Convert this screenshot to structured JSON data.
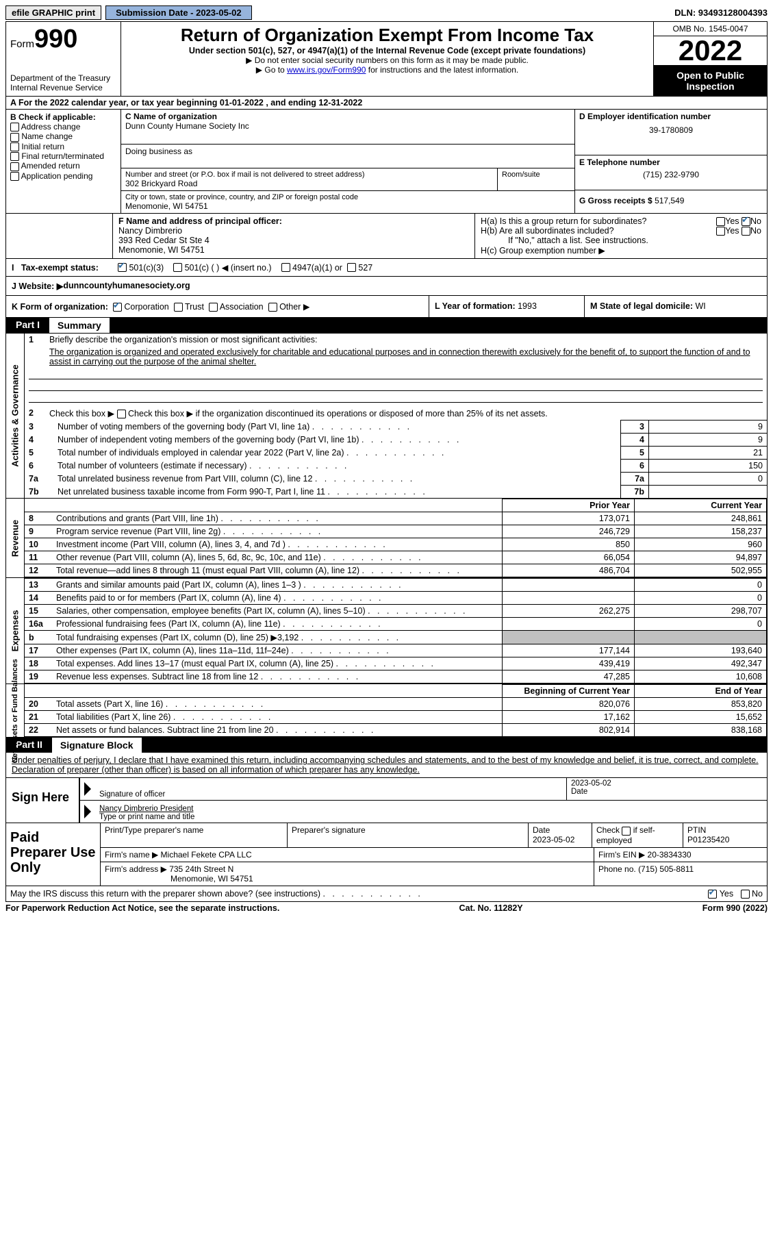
{
  "top": {
    "efile": "efile GRAPHIC print",
    "subdate_label": "Submission Date - ",
    "subdate": "2023-05-02",
    "dln": "DLN: 93493128004393"
  },
  "header": {
    "form_word": "Form",
    "form_num": "990",
    "dept": "Department of the Treasury",
    "irs": "Internal Revenue Service",
    "title": "Return of Organization Exempt From Income Tax",
    "sub": "Under section 501(c), 527, or 4947(a)(1) of the Internal Revenue Code (except private foundations)",
    "note1": "▶ Do not enter social security numbers on this form as it may be made public.",
    "note2_pre": "▶ Go to ",
    "note2_link": "www.irs.gov/Form990",
    "note2_post": " for instructions and the latest information.",
    "omb": "OMB No. 1545-0047",
    "year": "2022",
    "open1": "Open to Public",
    "open2": "Inspection"
  },
  "rowA": {
    "text": "A For the 2022 calendar year, or tax year beginning 01-01-2022    , and ending 12-31-2022"
  },
  "colB": {
    "title": "B Check if applicable:",
    "opts": [
      "Address change",
      "Name change",
      "Initial return",
      "Final return/terminated",
      "Amended return",
      "Application pending"
    ]
  },
  "colC": {
    "name_label": "C Name of organization",
    "name": "Dunn County Humane Society Inc",
    "dba_label": "Doing business as",
    "addr_label": "Number and street (or P.O. box if mail is not delivered to street address)",
    "addr": "302 Brickyard Road",
    "room_label": "Room/suite",
    "city_label": "City or town, state or province, country, and ZIP or foreign postal code",
    "city": "Menomonie, WI  54751"
  },
  "colDE": {
    "d_label": "D Employer identification number",
    "d_val": "39-1780809",
    "e_label": "E Telephone number",
    "e_val": "(715) 232-9790",
    "g_label": "G Gross receipts $ ",
    "g_val": "517,549"
  },
  "rowFH": {
    "f_label": "F Name and address of principal officer:",
    "f_name": "Nancy Dimbrerio",
    "f_addr1": "393 Red Cedar St Ste 4",
    "f_addr2": "Menomonie, WI  54751",
    "ha": "H(a)  Is this a group return for subordinates?",
    "hb": "H(b)  Are all subordinates included?",
    "hb_note": "If \"No,\" attach a list. See instructions.",
    "hc": "H(c)  Group exemption number ▶",
    "yes": "Yes",
    "no": "No"
  },
  "taxrow": {
    "label": "Tax-exempt status:",
    "o1": "501(c)(3)",
    "o2": "501(c) (  ) ◀ (insert no.)",
    "o3": "4947(a)(1) or",
    "o4": "527"
  },
  "web": {
    "label": "J  Website: ▶ ",
    "val": "dunncountyhumanesociety.org"
  },
  "rowK": {
    "k_label": "K Form of organization:",
    "opts": [
      "Corporation",
      "Trust",
      "Association",
      "Other ▶"
    ],
    "l_label": "L Year of formation: ",
    "l_val": "1993",
    "m_label": "M State of legal domicile: ",
    "m_val": "WI"
  },
  "part1": {
    "num": "Part I",
    "title": "Summary"
  },
  "summary": {
    "line1_label": "Briefly describe the organization's mission or most significant activities:",
    "line1_text": "The organization is organized and operated exclusively for charitable and educational purposes and in connection therewith exclusively for the benefit of, to support the function of and to assist in carrying out the purpose of the animal shelter.",
    "line2": "Check this box ▶      if the organization discontinued its operations or disposed of more than 25% of its net assets.",
    "lines_small": [
      {
        "n": "3",
        "d": "Number of voting members of the governing body (Part VI, line 1a)",
        "v": "9"
      },
      {
        "n": "4",
        "d": "Number of independent voting members of the governing body (Part VI, line 1b)",
        "v": "9"
      },
      {
        "n": "5",
        "d": "Total number of individuals employed in calendar year 2022 (Part V, line 2a)",
        "v": "21"
      },
      {
        "n": "6",
        "d": "Total number of volunteers (estimate if necessary)",
        "v": "150"
      },
      {
        "n": "7a",
        "d": "Total unrelated business revenue from Part VIII, column (C), line 12",
        "v": "0"
      },
      {
        "n": "7b",
        "d": "Net unrelated business taxable income from Form 990-T, Part I, line 11",
        "v": ""
      }
    ]
  },
  "revenue": {
    "hdr_py": "Prior Year",
    "hdr_cy": "Current Year",
    "rows": [
      {
        "n": "8",
        "d": "Contributions and grants (Part VIII, line 1h)",
        "py": "173,071",
        "cy": "248,861"
      },
      {
        "n": "9",
        "d": "Program service revenue (Part VIII, line 2g)",
        "py": "246,729",
        "cy": "158,237"
      },
      {
        "n": "10",
        "d": "Investment income (Part VIII, column (A), lines 3, 4, and 7d )",
        "py": "850",
        "cy": "960"
      },
      {
        "n": "11",
        "d": "Other revenue (Part VIII, column (A), lines 5, 6d, 8c, 9c, 10c, and 11e)",
        "py": "66,054",
        "cy": "94,897"
      },
      {
        "n": "12",
        "d": "Total revenue—add lines 8 through 11 (must equal Part VIII, column (A), line 12)",
        "py": "486,704",
        "cy": "502,955"
      }
    ]
  },
  "expenses": {
    "rows": [
      {
        "n": "13",
        "d": "Grants and similar amounts paid (Part IX, column (A), lines 1–3 )",
        "py": "",
        "cy": "0"
      },
      {
        "n": "14",
        "d": "Benefits paid to or for members (Part IX, column (A), line 4)",
        "py": "",
        "cy": "0"
      },
      {
        "n": "15",
        "d": "Salaries, other compensation, employee benefits (Part IX, column (A), lines 5–10)",
        "py": "262,275",
        "cy": "298,707"
      },
      {
        "n": "16a",
        "d": "Professional fundraising fees (Part IX, column (A), line 11e)",
        "py": "",
        "cy": "0"
      },
      {
        "n": "b",
        "d": "Total fundraising expenses (Part IX, column (D), line 25) ▶3,192",
        "py": "GREY",
        "cy": "GREY"
      },
      {
        "n": "17",
        "d": "Other expenses (Part IX, column (A), lines 11a–11d, 11f–24e)",
        "py": "177,144",
        "cy": "193,640"
      },
      {
        "n": "18",
        "d": "Total expenses. Add lines 13–17 (must equal Part IX, column (A), line 25)",
        "py": "439,419",
        "cy": "492,347"
      },
      {
        "n": "19",
        "d": "Revenue less expenses. Subtract line 18 from line 12",
        "py": "47,285",
        "cy": "10,608"
      }
    ]
  },
  "netassets": {
    "hdr_py": "Beginning of Current Year",
    "hdr_cy": "End of Year",
    "rows": [
      {
        "n": "20",
        "d": "Total assets (Part X, line 16)",
        "py": "820,076",
        "cy": "853,820"
      },
      {
        "n": "21",
        "d": "Total liabilities (Part X, line 26)",
        "py": "17,162",
        "cy": "15,652"
      },
      {
        "n": "22",
        "d": "Net assets or fund balances. Subtract line 21 from line 20",
        "py": "802,914",
        "cy": "838,168"
      }
    ]
  },
  "side": {
    "s1": "Activities & Governance",
    "s2": "Revenue",
    "s3": "Expenses",
    "s4": "Net Assets or Fund Balances"
  },
  "part2": {
    "num": "Part II",
    "title": "Signature Block",
    "text": "Under penalties of perjury, I declare that I have examined this return, including accompanying schedules and statements, and to the best of my knowledge and belief, it is true, correct, and complete. Declaration of preparer (other than officer) is based on all information of which preparer has any knowledge."
  },
  "sign": {
    "here": "Sign Here",
    "sigoff": "Signature of officer",
    "date": "Date",
    "date_val": "2023-05-02",
    "name": "Nancy Dimbrerio  President",
    "name_label": "Type or print name and title"
  },
  "prep": {
    "title": "Paid Preparer Use Only",
    "c1": "Print/Type preparer's name",
    "c2": "Preparer's signature",
    "c3_label": "Date",
    "c3": "2023-05-02",
    "c4": "Check        if self-employed",
    "c5_label": "PTIN",
    "c5": "P01235420",
    "firm_label": "Firm's name    ▶ ",
    "firm": "Michael Fekete CPA LLC",
    "ein_label": "Firm's EIN ▶ ",
    "ein": "20-3834330",
    "addr_label": "Firm's address ▶ ",
    "addr1": "735 24th Street N",
    "addr2": "Menomonie, WI  54751",
    "phone_label": "Phone no. ",
    "phone": "(715) 505-8811"
  },
  "footer": {
    "q": "May the IRS discuss this return with the preparer shown above? (see instructions)",
    "yes": "Yes",
    "no": "No",
    "pra": "For Paperwork Reduction Act Notice, see the separate instructions.",
    "cat": "Cat. No. 11282Y",
    "form": "Form 990 (2022)"
  }
}
